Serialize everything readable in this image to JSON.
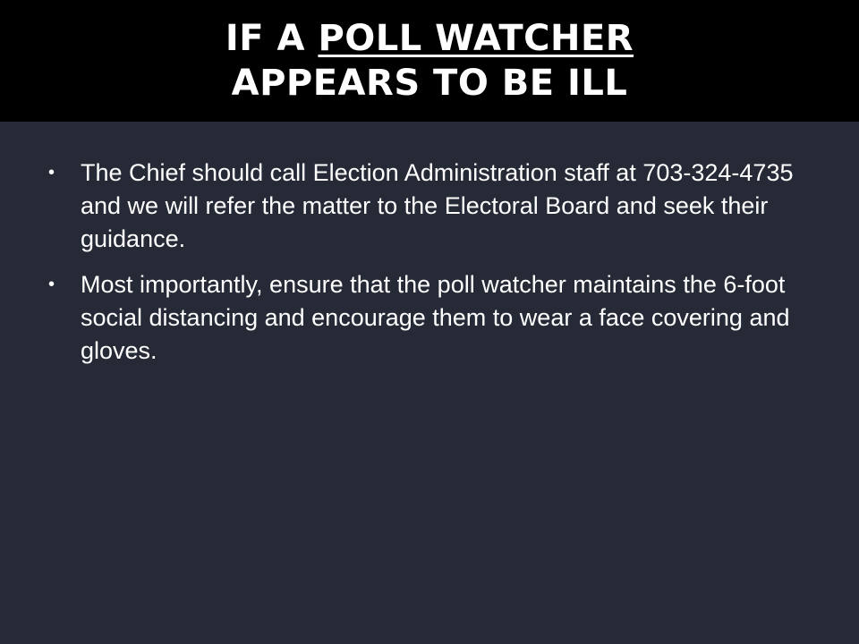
{
  "slide": {
    "title_line1_prefix": "IF A ",
    "title_line1_underlined": "POLL WATCHER",
    "title_line2": "APPEARS TO BE ILL"
  },
  "bullets": [
    {
      "text": "The Chief should call Election Administration staff at 703-324-4735 and we will refer the matter to the Electoral Board and seek their guidance."
    },
    {
      "text": "Most importantly, ensure that the poll watcher maintains the 6-foot social distancing and encourage them to wear a face covering and gloves."
    }
  ],
  "icons": {
    "bullet": "bullet-icon"
  },
  "colors": {
    "title_background": "#000000",
    "body_background": "#252a36",
    "text": "#ffffff"
  }
}
